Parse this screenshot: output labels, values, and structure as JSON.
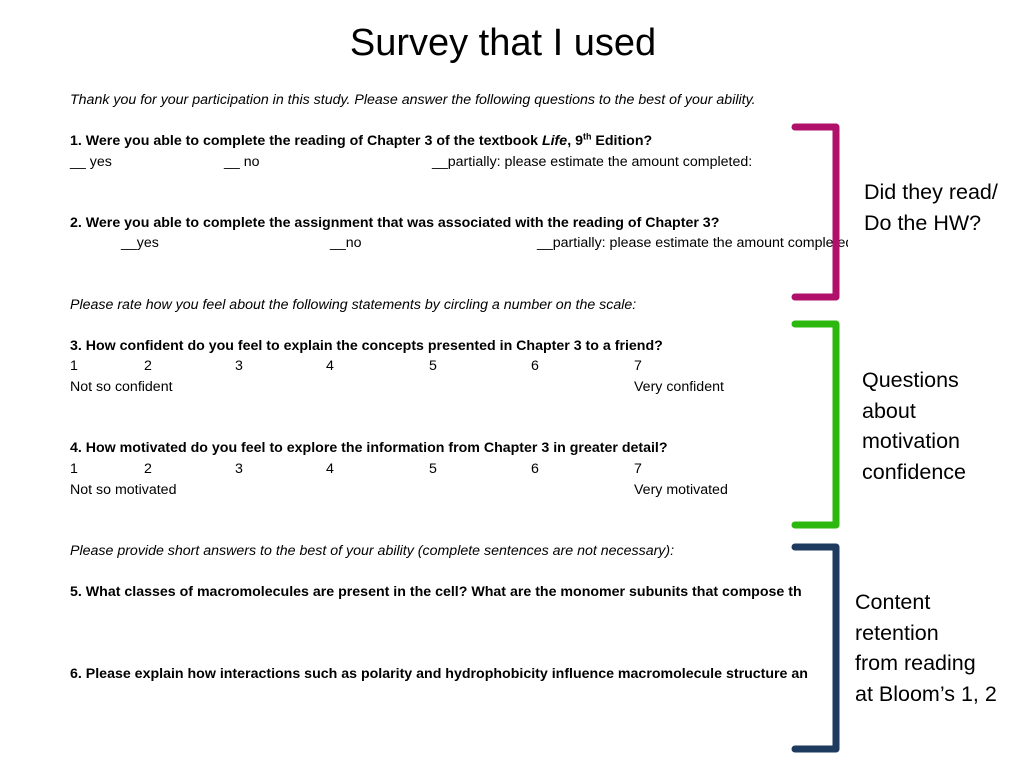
{
  "slide": {
    "title": "Survey that I used",
    "intro": "Thank you for your participation in this study.  Please answer the following questions to the best of your ability."
  },
  "survey": {
    "q1": {
      "prefix": "1.   Were you able to complete the reading of Chapter 3 of the textbook ",
      "book": "Life",
      "edition_num": ", 9",
      "edition_sup": "th",
      "edition_tail": " Edition?",
      "options": [
        "__ yes",
        "__ no",
        "__partially: please estimate the amount completed:"
      ]
    },
    "q2": {
      "text": "2.  Were you able to complete the assignment that was associated with the reading of Chapter 3?",
      "options": [
        "__yes",
        "__no",
        "__partially: please estimate the amount completed:"
      ]
    },
    "rate_instruction": "Please rate how you feel about the following statements by circling a number on the scale:",
    "q3": {
      "text": "3. How confident do you feel to explain the concepts presented in Chapter 3 to a friend?",
      "scale": [
        "1",
        "2",
        "3",
        "4",
        "5",
        "6",
        "7"
      ],
      "low_label": "Not so confident",
      "high_label": "Very confident"
    },
    "q4": {
      "text": "4. How motivated do you feel to explore the information from Chapter 3 in greater detail?",
      "scale": [
        "1",
        "2",
        "3",
        "4",
        "5",
        "6",
        "7"
      ],
      "low_label": "Not so motivated",
      "high_label": "Very motivated"
    },
    "short_instruction": "Please provide short answers to the best of your ability (complete sentences are not necessary):",
    "q5": {
      "text": "5.  What classes of macromolecules are present in the cell?  What are the monomer subunits that compose th"
    },
    "q6": {
      "text": "6.  Please explain how interactions such as polarity and hydrophobicity influence macromolecule structure an"
    }
  },
  "annotations": [
    {
      "label": "Did they read/\nDo the HW?",
      "color": "#b0106a"
    },
    {
      "label": "Questions\nabout\nmotivation\nconfidence",
      "color": "#2db80f"
    },
    {
      "label": "Content\nretention\nfrom reading\nat  Bloom’s 1, 2",
      "color": "#1e3a5f"
    }
  ]
}
